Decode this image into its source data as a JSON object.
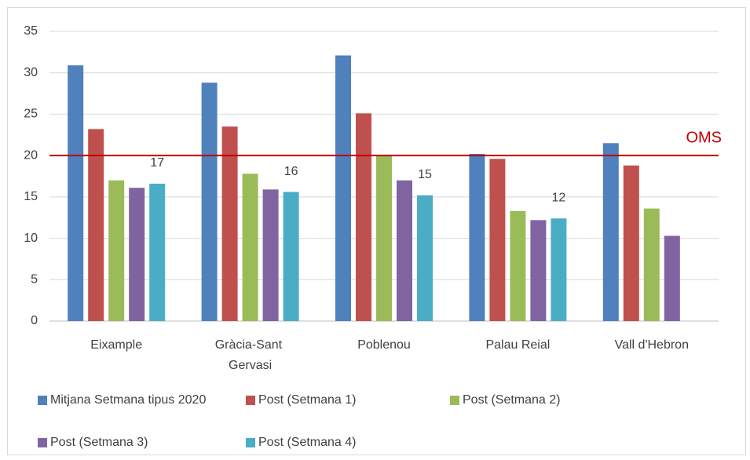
{
  "chart_data": {
    "type": "bar",
    "categories": [
      "Eixample",
      "Gràcia-Sant Gervasi",
      "Poblenou",
      "Palau Reial",
      "Vall d'Hebron"
    ],
    "series": [
      {
        "name": "Mitjana Setmana tipus 2020",
        "color": "#4f81bd",
        "values": [
          30.9,
          28.8,
          32.1,
          20.2,
          21.5
        ]
      },
      {
        "name": "Post (Setmana 1)",
        "color": "#c0504d",
        "values": [
          23.2,
          23.5,
          25.1,
          19.6,
          18.8
        ]
      },
      {
        "name": "Post (Setmana 2)",
        "color": "#9bbb59",
        "values": [
          17.0,
          17.8,
          20.1,
          13.3,
          13.6
        ]
      },
      {
        "name": "Post (Setmana 3)",
        "color": "#8064a2",
        "values": [
          16.1,
          15.9,
          17.0,
          12.2,
          10.3
        ]
      },
      {
        "name": "Post (Setmana 4)",
        "color": "#4bacc6",
        "values": [
          16.6,
          15.6,
          15.2,
          12.4,
          null
        ],
        "value_labels": [
          "17",
          "16",
          "15",
          "12",
          null
        ]
      }
    ],
    "reference_line": {
      "value": 20,
      "label": "OMS",
      "color": "#c00000"
    },
    "ylim": [
      0,
      35
    ],
    "yticks": [
      0,
      5,
      10,
      15,
      20,
      25,
      30,
      35
    ],
    "grid": true
  }
}
